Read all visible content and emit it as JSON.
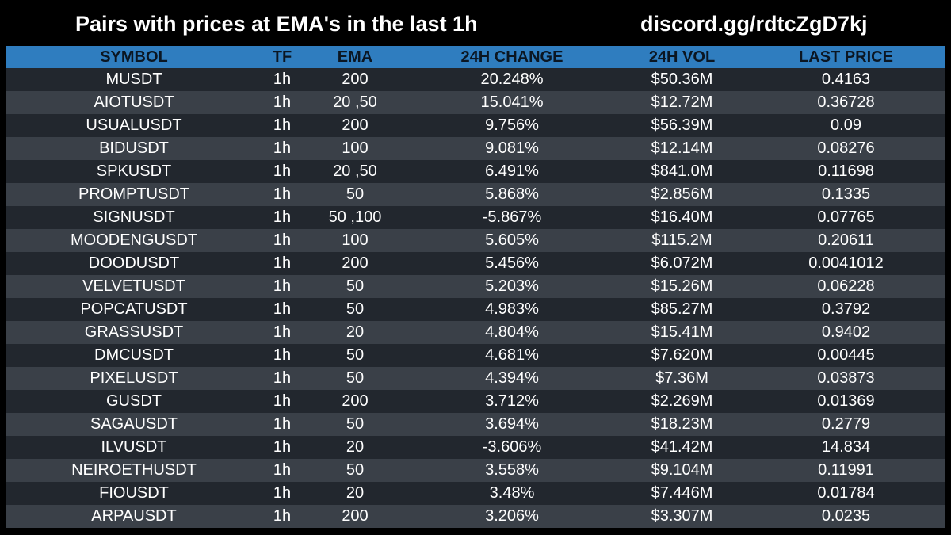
{
  "header": {
    "title": "Pairs with prices at EMA's in the last 1h",
    "link": "discord.gg/rdtcZgD7kj"
  },
  "colors": {
    "background": "#000000",
    "header_row": "#2f7dbf",
    "row_dark": "#22272e",
    "row_light": "#3a4048",
    "text": "#ffffff"
  },
  "table": {
    "columns": [
      "SYMBOL",
      "TF",
      "EMA",
      "24H CHANGE",
      "24H VOL",
      "LAST PRICE"
    ],
    "rows": [
      [
        "MUSDT",
        "1h",
        "200",
        "20.248%",
        "$50.36M",
        "0.4163"
      ],
      [
        "AIOTUSDT",
        "1h",
        "20 ,50",
        "15.041%",
        "$12.72M",
        "0.36728"
      ],
      [
        "USUALUSDT",
        "1h",
        "200",
        "9.756%",
        "$56.39M",
        "0.09"
      ],
      [
        "BIDUSDT",
        "1h",
        "100",
        "9.081%",
        "$12.14M",
        "0.08276"
      ],
      [
        "SPKUSDT",
        "1h",
        "20 ,50",
        "6.491%",
        "$841.0M",
        "0.11698"
      ],
      [
        "PROMPTUSDT",
        "1h",
        "50",
        "5.868%",
        "$2.856M",
        "0.1335"
      ],
      [
        "SIGNUSDT",
        "1h",
        "50 ,100",
        "-5.867%",
        "$16.40M",
        "0.07765"
      ],
      [
        "MOODENGUSDT",
        "1h",
        "100",
        "5.605%",
        "$115.2M",
        "0.20611"
      ],
      [
        "DOODUSDT",
        "1h",
        "200",
        "5.456%",
        "$6.072M",
        "0.0041012"
      ],
      [
        "VELVETUSDT",
        "1h",
        "50",
        "5.203%",
        "$15.26M",
        "0.06228"
      ],
      [
        "POPCATUSDT",
        "1h",
        "50",
        "4.983%",
        "$85.27M",
        "0.3792"
      ],
      [
        "GRASSUSDT",
        "1h",
        "20",
        "4.804%",
        "$15.41M",
        "0.9402"
      ],
      [
        "DMCUSDT",
        "1h",
        "50",
        "4.681%",
        "$7.620M",
        "0.00445"
      ],
      [
        "PIXELUSDT",
        "1h",
        "50",
        "4.394%",
        "$7.36M",
        "0.03873"
      ],
      [
        "GUSDT",
        "1h",
        "200",
        "3.712%",
        "$2.269M",
        "0.01369"
      ],
      [
        "SAGAUSDT",
        "1h",
        "50",
        "3.694%",
        "$18.23M",
        "0.2779"
      ],
      [
        "ILVUSDT",
        "1h",
        "20",
        "-3.606%",
        "$41.42M",
        "14.834"
      ],
      [
        "NEIROETHUSDT",
        "1h",
        "50",
        "3.558%",
        "$9.104M",
        "0.11991"
      ],
      [
        "FIOUSDT",
        "1h",
        "20",
        "3.48%",
        "$7.446M",
        "0.01784"
      ],
      [
        "ARPAUSDT",
        "1h",
        "200",
        "3.206%",
        "$3.307M",
        "0.0235"
      ]
    ]
  }
}
